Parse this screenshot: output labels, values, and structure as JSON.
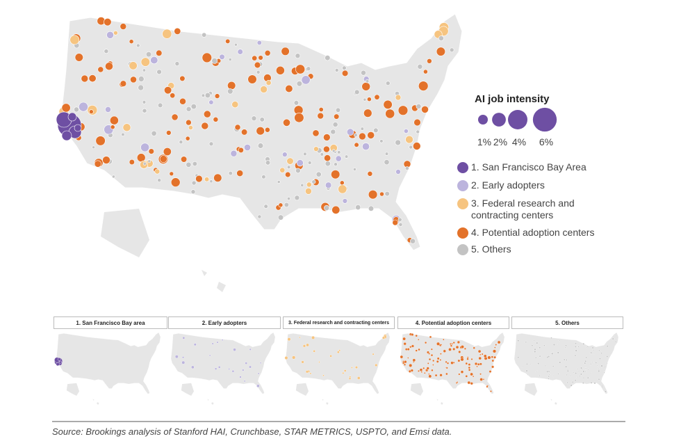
{
  "legend": {
    "title": "AI job intensity",
    "sizes": [
      {
        "value": 1,
        "label": "1%"
      },
      {
        "value": 2,
        "label": "2%"
      },
      {
        "value": 4,
        "label": "4%"
      },
      {
        "value": 6,
        "label": "6%"
      }
    ],
    "groups": [
      {
        "label": "1. San Francisco Bay Area",
        "color": "#6e4fa3"
      },
      {
        "label": "2. Early adopters",
        "color": "#bcb4dd"
      },
      {
        "label": "3. Federal research and contracting centers",
        "color": "#f6c480"
      },
      {
        "label": "4. Potential adoption centers",
        "color": "#e3722a"
      },
      {
        "label": "5. Others",
        "color": "#c3c3c3"
      }
    ]
  },
  "panels": [
    "1. San Francisco Bay area",
    "2. Early adopters",
    "3. Federal research and contracting centers",
    "4. Potential adoption centers",
    "5. Others"
  ],
  "source": "Source: Brookings analysis of Stanford HAI, Crunchbase, STAR METRICS, USPTO, and Emsi data."
}
